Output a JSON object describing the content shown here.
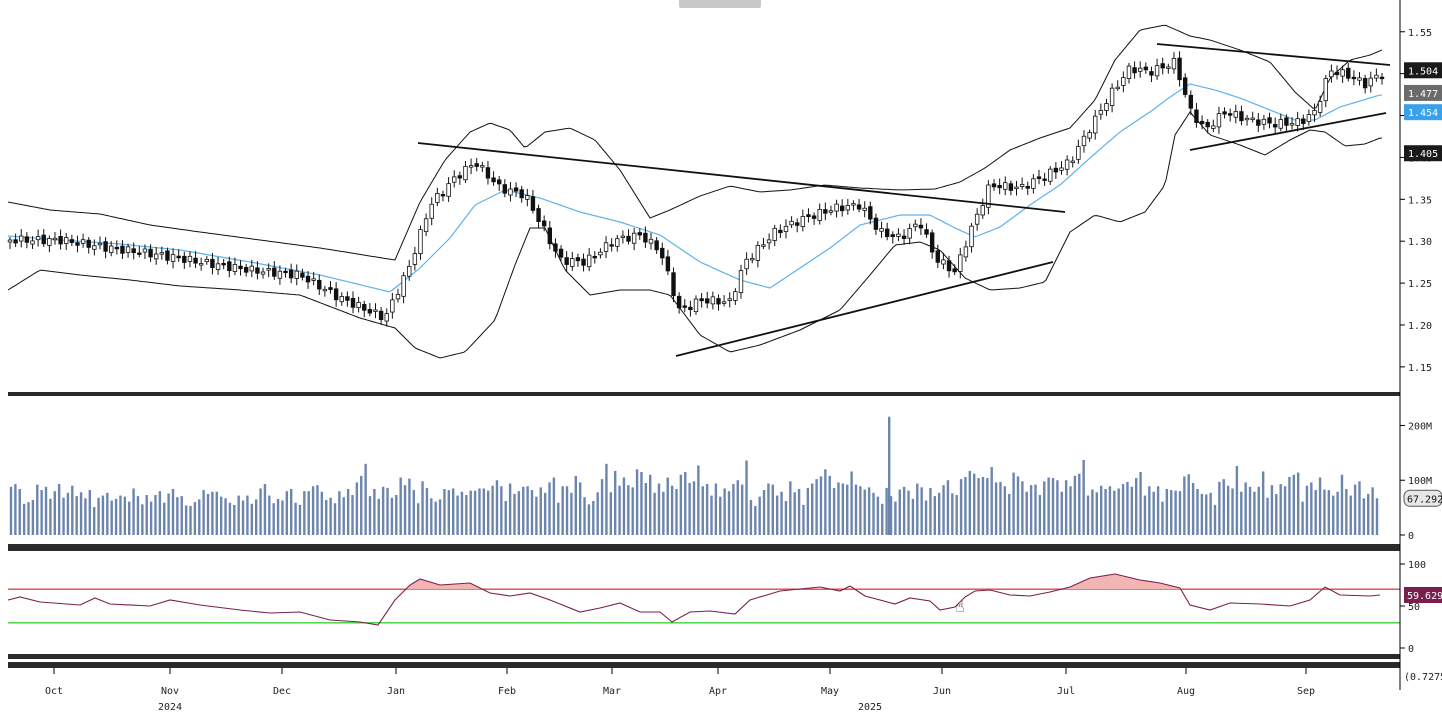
{
  "chart_data": [
    {
      "type": "candlestick",
      "title": "",
      "yticks": [
        "1.55",
        "1.50",
        "1.45",
        "1.40",
        "1.35",
        "1.30",
        "1.25",
        "1.20",
        "1.15"
      ],
      "ylim": [
        1.12,
        1.57
      ],
      "price_tags": [
        {
          "label": "1.504",
          "value": 1.504,
          "style": "dark"
        },
        {
          "label": "1.477",
          "value": 1.477,
          "style": "gray"
        },
        {
          "label": "1.454",
          "value": 1.454,
          "style": "blue"
        },
        {
          "label": "1.405",
          "value": 1.405,
          "style": "dark"
        }
      ],
      "overlays": [
        "20-period moving average (light blue)",
        "Bollinger bands (black)",
        "trendlines (black)"
      ],
      "close_by_month": [
        {
          "month": "Oct",
          "close": 1.29
        },
        {
          "month": "Nov",
          "close": 1.27
        },
        {
          "month": "Dec",
          "close": 1.23
        },
        {
          "month": "Jan",
          "close": 1.33
        },
        {
          "month": "Feb",
          "close": 1.27
        },
        {
          "month": "Mar",
          "close": 1.18
        },
        {
          "month": "Apr",
          "close": 1.27
        },
        {
          "month": "May",
          "close": 1.31
        },
        {
          "month": "Jun",
          "close": 1.35
        },
        {
          "month": "Jul",
          "close": 1.48
        },
        {
          "month": "Aug",
          "close": 1.42
        },
        {
          "month": "Sep",
          "close": 1.477
        }
      ]
    },
    {
      "type": "bar",
      "title": "",
      "yticks": [
        "200M",
        "100M",
        "0"
      ],
      "ylim": [
        0,
        220
      ],
      "last_value_tag": "67.292",
      "series_color": "#6c85ad",
      "values": [
        88,
        93,
        84,
        57,
        60,
        64,
        92,
        82,
        88,
        66,
        80,
        93,
        68,
        77,
        90,
        71,
        78,
        67,
        82,
        51,
        68,
        72,
        77,
        63,
        66,
        72,
        70,
        61,
        85,
        71,
        56,
        73,
        61,
        73,
        80,
        59,
        76,
        84,
        69,
        71,
        54,
        53,
        60,
        65,
        82,
        75,
        79,
        79,
        70,
        67,
        59,
        55,
        72,
        63,
        72,
        57,
        65,
        85,
        93,
        72,
        58,
        66,
        63,
        80,
        84,
        59,
        55,
        80,
        80,
        89,
        91,
        79,
        64,
        68,
        58,
        80,
        69,
        84,
        73,
        96,
        108,
        130,
        71,
        84,
        66,
        88,
        86,
        68,
        73,
        105,
        91,
        103,
        82,
        58,
        98,
        86,
        67,
        61,
        65,
        84,
        82,
        85,
        72,
        79,
        73,
        81,
        81,
        85,
        85,
        81,
        90,
        100,
        89,
        62,
        94,
        75,
        80,
        88,
        89,
        82,
        70,
        87,
        77,
        96,
        105,
        59,
        89,
        89,
        77,
        108,
        96,
        69,
        56,
        62,
        78,
        102,
        130,
        78,
        117,
        90,
        105,
        91,
        87,
        120,
        115,
        95,
        110,
        77,
        94,
        79,
        105,
        90,
        84,
        110,
        115,
        95,
        98,
        127,
        89,
        93,
        72,
        94,
        70,
        85,
        80,
        93,
        100,
        92,
        136,
        64,
        53,
        70,
        82,
        94,
        92,
        72,
        79,
        62,
        98,
        78,
        84,
        55,
        86,
        94,
        102,
        107,
        120,
        108,
        86,
        96,
        94,
        92,
        116,
        92,
        89,
        83,
        87,
        77,
        70,
        57,
        86,
        71,
        61,
        83,
        88,
        81,
        66,
        94,
        87,
        63,
        86,
        71,
        77,
        91,
        100,
        76,
        73,
        102,
        106,
        117,
        112,
        104,
        106,
        104,
        124,
        96,
        97,
        89,
        75,
        114,
        107,
        98,
        79,
        91,
        92,
        73,
        98,
        105,
        104,
        100,
        79,
        100,
        89,
        108,
        112,
        137,
        72,
        83,
        78,
        90,
        84,
        89,
        81,
        85,
        93,
        97,
        88,
        104,
        115,
        72,
        89,
        79,
        89,
        61,
        84,
        82,
        81,
        80,
        107,
        111,
        95,
        84,
        75,
        74,
        77,
        55,
        97,
        102,
        90,
        85,
        126,
        79,
        96,
        88,
        79,
        88,
        116,
        68,
        91,
        75,
        93,
        89,
        106,
        110,
        114,
        61,
        90,
        96,
        82,
        105,
        83,
        82,
        72,
        79,
        110,
        84,
        72,
        92,
        98,
        67,
        75,
        87,
        67
      ],
      "mark_value": 216
    },
    {
      "type": "line",
      "title": "",
      "yticks": [
        "100",
        "50",
        "0"
      ],
      "ylim": [
        0,
        100
      ],
      "last_value_tag": "59.629",
      "overbought": 70,
      "oversold": 30
    }
  ],
  "x_axis": {
    "months": [
      "Oct",
      "Nov",
      "Dec",
      "Jan",
      "Feb",
      "Mar",
      "Apr",
      "May",
      "Jun",
      "Jul",
      "Aug",
      "Sep"
    ],
    "years": [
      "2024",
      "2025"
    ],
    "bottom_value": "0.7275"
  }
}
